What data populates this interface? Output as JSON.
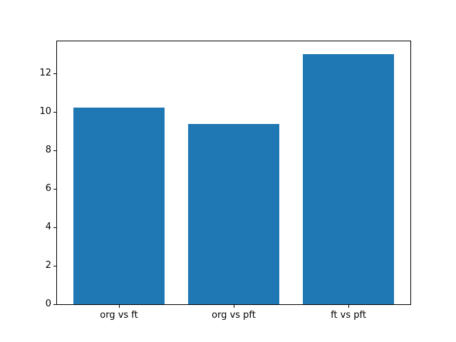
{
  "figure": {
    "background_color": "#ffffff"
  },
  "chart_data": {
    "type": "bar",
    "categories": [
      "org vs ft",
      "org vs pft",
      "ft vs pft"
    ],
    "values": [
      10.2,
      9.35,
      13.0
    ],
    "title": "",
    "xlabel": "",
    "ylabel": "",
    "ylim": [
      0,
      13.65
    ],
    "yticks": [
      0,
      2,
      4,
      6,
      8,
      10,
      12
    ],
    "ytick_labels": [
      "0",
      "2",
      "4",
      "6",
      "8",
      "10",
      "12"
    ],
    "bar_color": "#1f77b4",
    "bar_width_fraction": 0.8,
    "axis_color": "#000000",
    "tick_label_color": "#000000",
    "grid": false,
    "legend": null
  }
}
